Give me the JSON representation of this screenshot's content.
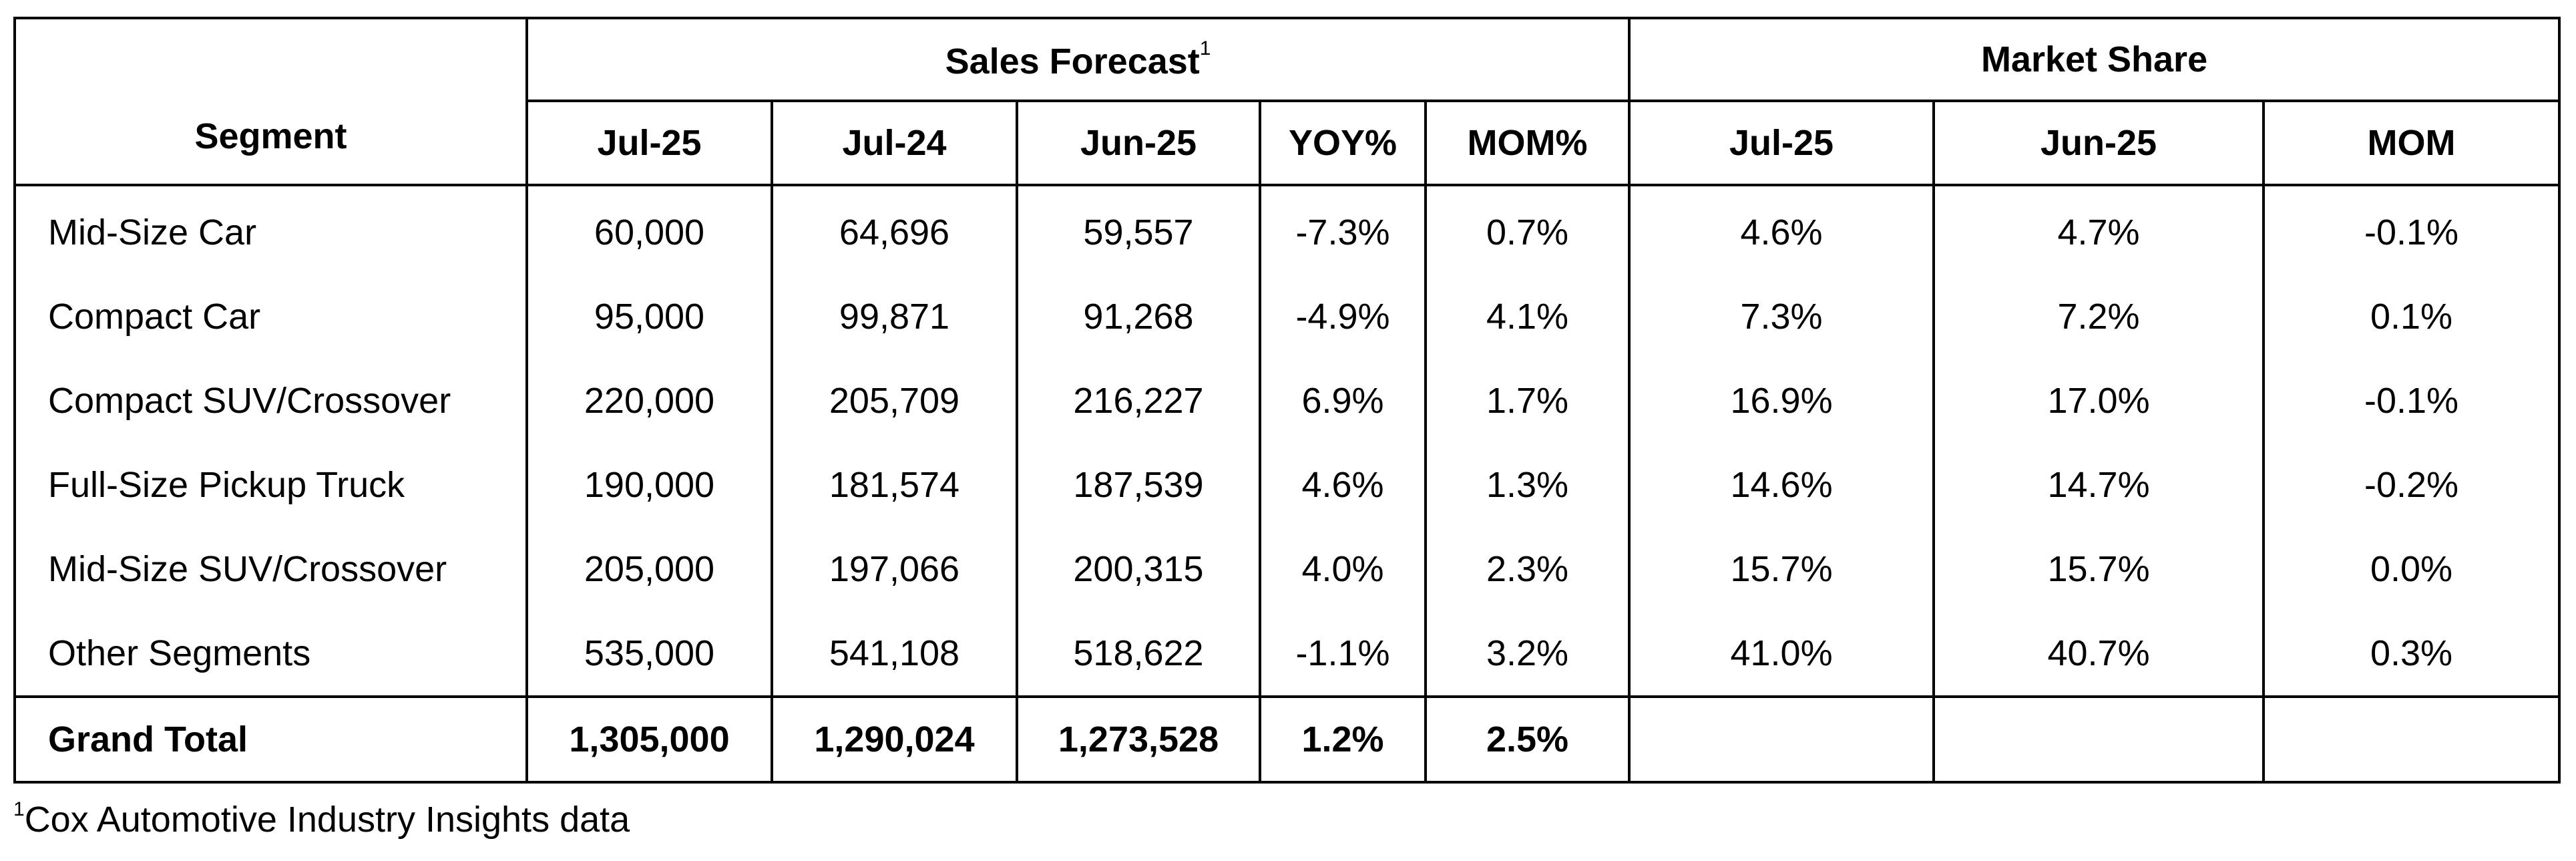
{
  "header": {
    "groups": [
      "Sales Forecast",
      "Market Share"
    ],
    "note_mark": "1",
    "columns": [
      "Segment",
      "Jul-25",
      "Jul-24",
      "Jun-25",
      "YOY%",
      "MOM%",
      "Jul-25",
      "Jun-25",
      "MOM"
    ]
  },
  "table": {
    "rows": [
      [
        "Mid-Size Car",
        "60,000",
        "64,696",
        "59,557",
        "-7.3%",
        "0.7%",
        "4.6%",
        "4.7%",
        "-0.1%"
      ],
      [
        "Compact Car",
        "95,000",
        "99,871",
        "91,268",
        "-4.9%",
        "4.1%",
        "7.3%",
        "7.2%",
        "0.1%"
      ],
      [
        "Compact SUV/Crossover",
        "220,000",
        "205,709",
        "216,227",
        "6.9%",
        "1.7%",
        "16.9%",
        "17.0%",
        "-0.1%"
      ],
      [
        "Full-Size Pickup Truck",
        "190,000",
        "181,574",
        "187,539",
        "4.6%",
        "1.3%",
        "14.6%",
        "14.7%",
        "-0.2%"
      ],
      [
        "Mid-Size SUV/Crossover",
        "205,000",
        "197,066",
        "200,315",
        "4.0%",
        "2.3%",
        "15.7%",
        "15.7%",
        "0.0%"
      ],
      [
        "Other Segments",
        "535,000",
        "541,108",
        "518,622",
        "-1.1%",
        "3.2%",
        "41.0%",
        "40.7%",
        "0.3%"
      ]
    ],
    "total": [
      "Grand Total",
      "1,305,000",
      "1,290,024",
      "1,273,528",
      "1.2%",
      "2.5%"
    ]
  },
  "footnote": {
    "mark": "1",
    "text": "Cox Automotive Industry Insights data"
  }
}
